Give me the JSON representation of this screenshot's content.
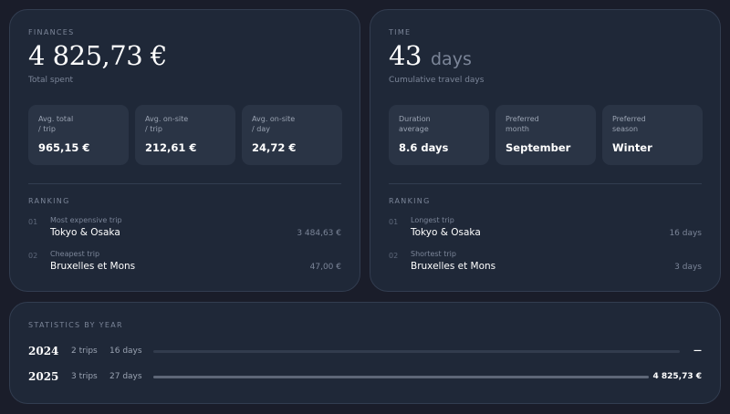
{
  "finances": {
    "label": "FINANCES",
    "total": "4 825,73 €",
    "total_caption": "Total spent",
    "cards": [
      {
        "label": "Avg. total\n/ trip",
        "value": "965,15 €"
      },
      {
        "label": "Avg. on-site\n/ trip",
        "value": "212,61 €"
      },
      {
        "label": "Avg. on-site\n/ day",
        "value": "24,72 €"
      }
    ],
    "ranking_label": "RANKING",
    "ranking": [
      {
        "num": "01",
        "label": "Most expensive trip",
        "name": "Tokyo & Osaka",
        "value": "3 484,63 €"
      },
      {
        "num": "02",
        "label": "Cheapest trip",
        "name": "Bruxelles et Mons",
        "value": "47,00 €"
      }
    ]
  },
  "time": {
    "label": "TIME",
    "total": "43",
    "unit": "days",
    "total_caption": "Cumulative travel days",
    "cards": [
      {
        "label": "Duration\naverage",
        "value": "8.6 days"
      },
      {
        "label": "Preferred\nmonth",
        "value": "September"
      },
      {
        "label": "Preferred\nseason",
        "value": "Winter"
      }
    ],
    "ranking_label": "RANKING",
    "ranking": [
      {
        "num": "01",
        "label": "Longest trip",
        "name": "Tokyo & Osaka",
        "value": "16 days"
      },
      {
        "num": "02",
        "label": "Shortest trip",
        "name": "Bruxelles et Mons",
        "value": "3 days"
      }
    ]
  },
  "stats": {
    "label": "STATISTICS BY YEAR",
    "years": [
      {
        "year": "2024",
        "trips": "2 trips",
        "days": "16 days",
        "amount": "—",
        "progress": 0
      },
      {
        "year": "2025",
        "trips": "3 trips",
        "days": "27 days",
        "amount": "4 825,73 €",
        "progress": 1
      }
    ]
  },
  "colors": {
    "background": "#1a1d2a",
    "panel": "#1f2838",
    "card": "#2a3445",
    "muted_text": "#7b8598",
    "bar_fill": "#5e6778"
  }
}
